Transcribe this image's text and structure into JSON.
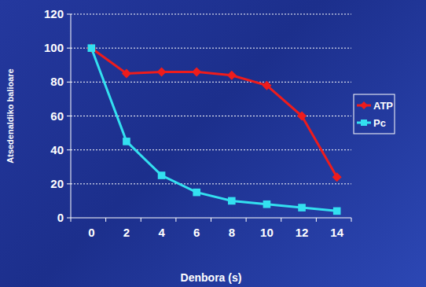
{
  "chart_data": {
    "type": "line",
    "x_label": "Denbora (s)",
    "y_label": "Atsedenaldiko balioare",
    "categories": [
      "0",
      "2",
      "4",
      "6",
      "8",
      "10",
      "12",
      "14"
    ],
    "series": [
      {
        "name": "ATP",
        "color": "#ee1c1c",
        "marker": "diamond",
        "line_style": "solid",
        "values": [
          100,
          85,
          86,
          86,
          84,
          78,
          60,
          24
        ]
      },
      {
        "name": "Pc",
        "color": "#33e0f0",
        "marker": "square",
        "line_style": "solid",
        "values": [
          100,
          45,
          25,
          15,
          10,
          8,
          6,
          4
        ]
      }
    ],
    "ylim": [
      0,
      120
    ],
    "yticks": [
      0,
      20,
      40,
      60,
      80,
      100,
      120
    ],
    "grid": true,
    "legend": "right"
  }
}
